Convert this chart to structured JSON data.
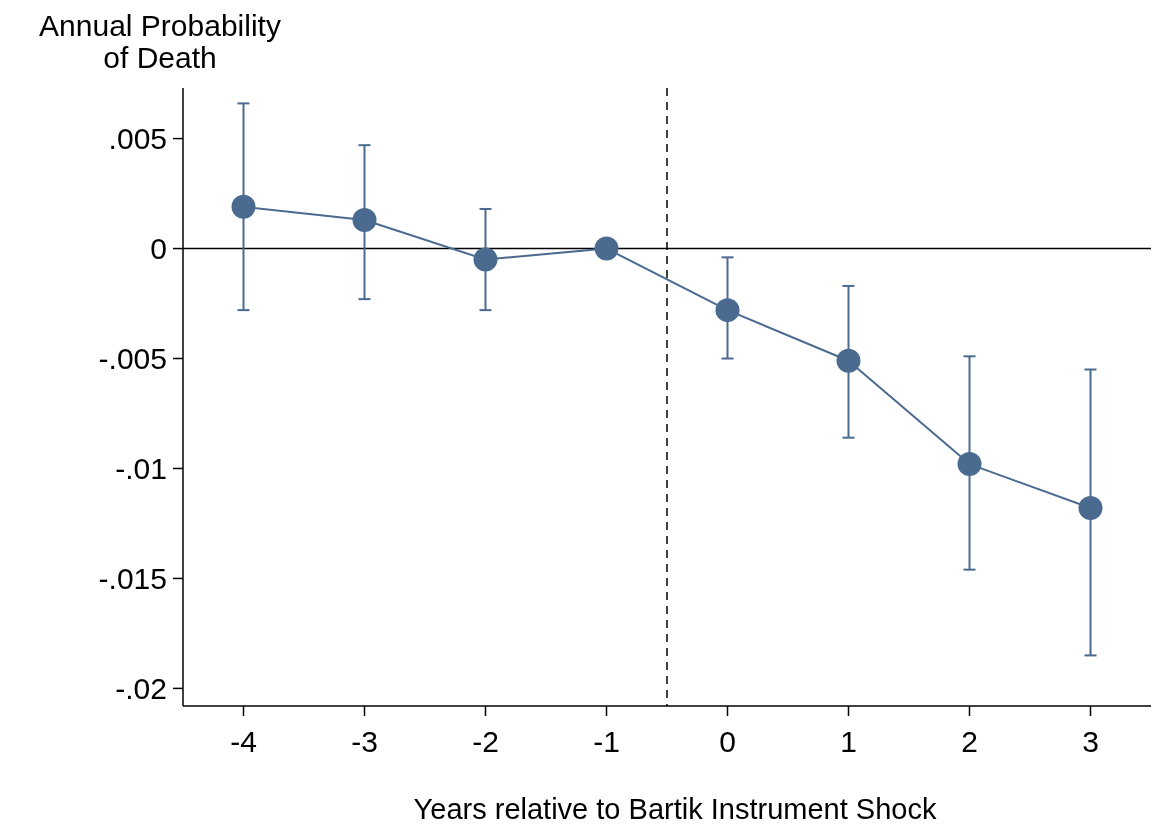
{
  "chart_data": {
    "type": "line",
    "ylabel": "Annual Probability of Death",
    "xlabel": "Years relative to Bartik Instrument Shock",
    "x": [
      -4,
      -3,
      -2,
      -1,
      0,
      1,
      2,
      3
    ],
    "series": [
      {
        "color": "#4a6b8f",
        "values": [
          0.0019,
          0.0013,
          -0.0005,
          0,
          -0.0028,
          -0.0051,
          -0.0098,
          -0.0118
        ],
        "errors": [
          [
            -0.0028,
            0.0066
          ],
          [
            -0.0023,
            0.0047
          ],
          [
            -0.0028,
            0.0018
          ],
          null,
          [
            -0.005,
            -0.0004
          ],
          [
            -0.0086,
            -0.0017
          ],
          [
            -0.0146,
            -0.0049
          ],
          [
            -0.0185,
            -0.0055
          ]
        ]
      }
    ],
    "xlim": [
      -4.5,
      3.5
    ],
    "xticks": [
      -4,
      -3,
      -2,
      -1,
      0,
      1,
      2,
      3
    ],
    "ylim": [
      -0.0208,
      0.0073
    ],
    "yticks": [
      {
        "value": 0.005,
        "label": ".005"
      },
      0,
      {
        "value": -0.005,
        "label": "-.005"
      },
      {
        "value": -0.01,
        "label": "-.01"
      },
      {
        "value": -0.015,
        "label": "-.015"
      },
      {
        "value": -0.02,
        "label": "-.02"
      }
    ],
    "ref_lines": [
      {
        "axis": "y",
        "value": 0,
        "line_style": "solid",
        "color": "#000000"
      },
      {
        "axis": "x",
        "value": -0.5,
        "line_style": "dashed",
        "color": "#000000"
      }
    ],
    "marker": "circle",
    "grid": false
  }
}
